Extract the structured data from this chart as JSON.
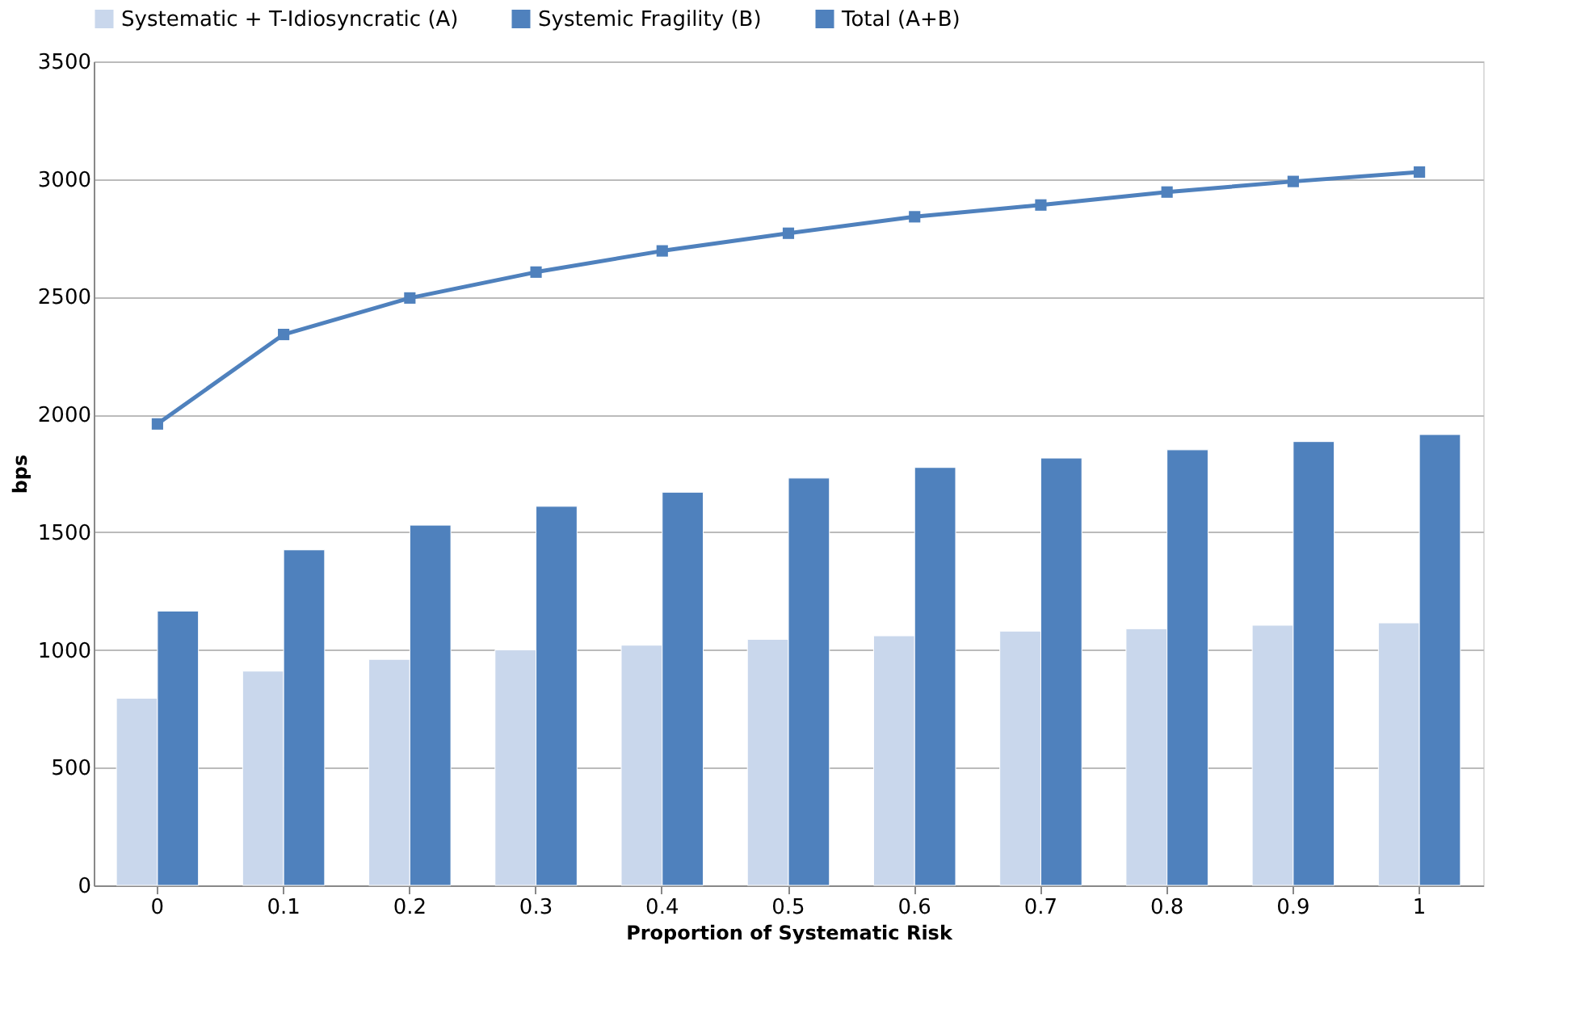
{
  "chart_data": {
    "type": "bar",
    "xlabel": "Proportion of Systematic Risk",
    "ylabel": "bps",
    "categories": [
      "0",
      "0.1",
      "0.2",
      "0.3",
      "0.4",
      "0.5",
      "0.6",
      "0.7",
      "0.8",
      "0.9",
      "1"
    ],
    "ylim": [
      0,
      3500
    ],
    "yticks": [
      0,
      500,
      1000,
      1500,
      2000,
      2500,
      3000,
      3500
    ],
    "grid": "y",
    "legend": "top",
    "series": [
      {
        "name": "Systematic + T-Idiosyncratic (A)",
        "color": "#c9d7ec",
        "values": [
          795,
          910,
          960,
          1000,
          1020,
          1045,
          1060,
          1080,
          1090,
          1105,
          1115
        ]
      },
      {
        "name": "Systemic Fragility (B)",
        "color": "#4f81bd",
        "values": [
          1165,
          1425,
          1530,
          1610,
          1670,
          1730,
          1775,
          1815,
          1850,
          1885,
          1915
        ]
      },
      {
        "name": "Total (A+B)",
        "type": "line",
        "marker": "square",
        "color": "#4f81bd",
        "values": [
          1960,
          2340,
          2495,
          2605,
          2695,
          2770,
          2840,
          2890,
          2945,
          2990,
          3030
        ]
      }
    ]
  }
}
